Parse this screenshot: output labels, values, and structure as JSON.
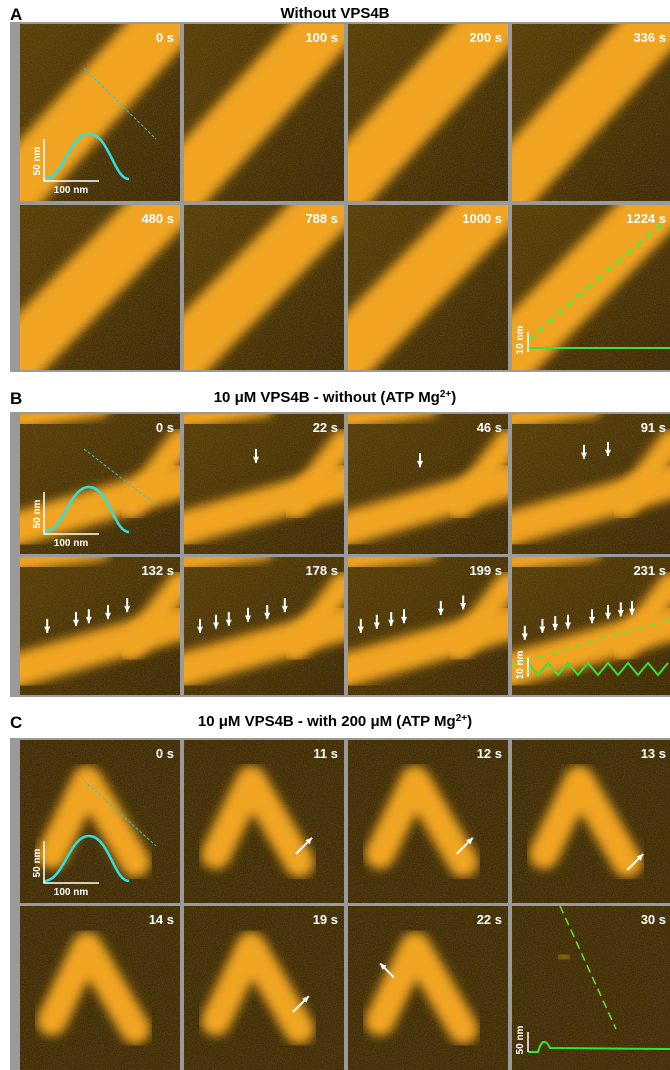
{
  "panels": [
    {
      "label": "A",
      "title": {
        "main": "Without VPS4B"
      },
      "frames": [
        "0 s",
        "100 s",
        "200 s",
        "336 s",
        "480 s",
        "788 s",
        "1000 s",
        "1224 s"
      ],
      "inset": {
        "height": "50 nm",
        "width": "100 nm"
      },
      "end_inset": {
        "height": "10 nm"
      }
    },
    {
      "label": "B",
      "title": {
        "main": "10 μM VPS4B - without (ATP Mg",
        "sup": "2+",
        "tail": ")"
      },
      "frames": [
        "0 s",
        "22 s",
        "46 s",
        "91 s",
        "132 s",
        "178 s",
        "199 s",
        "231 s"
      ],
      "inset": {
        "height": "50 nm",
        "width": "100 nm"
      },
      "end_inset": {
        "height": "10 nm"
      }
    },
    {
      "label": "C",
      "title": {
        "main": "10 μM VPS4B - with 200 μM (ATP Mg",
        "sup": "2+",
        "tail": ")"
      },
      "frames": [
        "0 s",
        "11 s",
        "12 s",
        "13 s",
        "14 s",
        "19 s",
        "22 s",
        "30 s"
      ],
      "inset": {
        "height": "50 nm",
        "width": "100 nm"
      },
      "end_inset": {
        "height": "50 nm"
      }
    }
  ]
}
